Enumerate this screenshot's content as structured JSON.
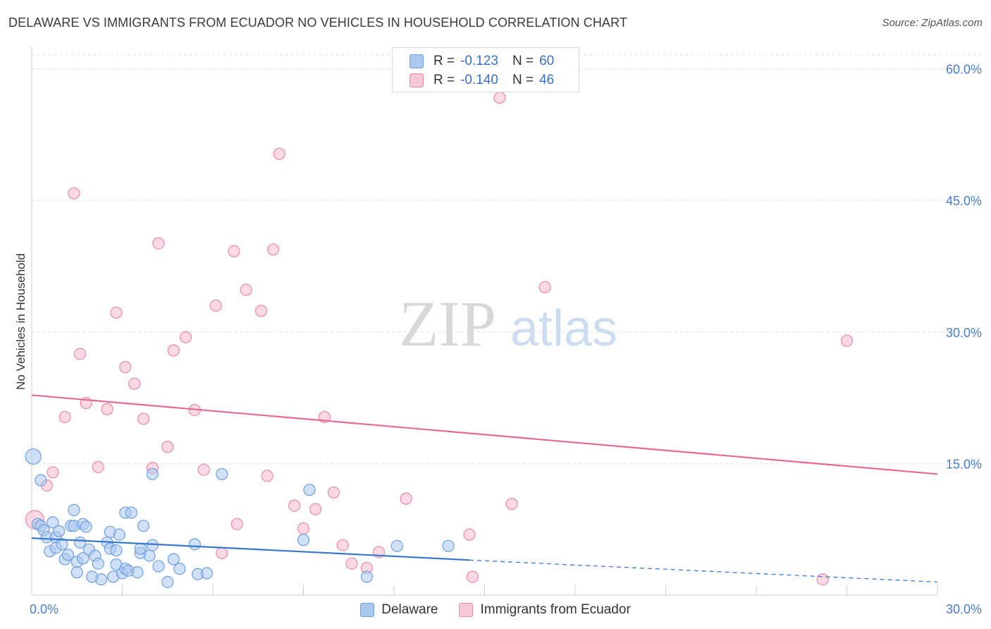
{
  "title": "DELAWARE VS IMMIGRANTS FROM ECUADOR NO VEHICLES IN HOUSEHOLD CORRELATION CHART",
  "source": "Source: ZipAtlas.com",
  "watermark": {
    "zip": "ZIP",
    "atlas": "atlas"
  },
  "colors": {
    "blue_fill": "#a9c8f0",
    "blue_stroke": "#6f9fdc",
    "blue_line": "#3a78d0",
    "pink_fill": "#f6b9cc",
    "pink_stroke": "#e98aa8",
    "pink_line": "#e46a94",
    "grid": "#dedede",
    "tick": "#4a7ec7"
  },
  "legend": {
    "rows": [
      {
        "r_label": "R =",
        "r_value": "-0.123",
        "n_label": "N =",
        "n_value": "60"
      },
      {
        "r_label": "R =",
        "r_value": "-0.140",
        "n_label": "N =",
        "n_value": "46"
      }
    ]
  },
  "chart_data": {
    "type": "scatter",
    "title": "DELAWARE VS IMMIGRANTS FROM ECUADOR NO VEHICLES IN HOUSEHOLD CORRELATION CHART",
    "xlabel": "",
    "ylabel": "No Vehicles in Household",
    "xlim": [
      0,
      30
    ],
    "ylim": [
      0,
      60
    ],
    "x_ticks": [
      {
        "value": 0,
        "label": "0.0%"
      },
      {
        "value": 30,
        "label": "30.0%"
      }
    ],
    "y_ticks": [
      {
        "value": 15,
        "label": "15.0%"
      },
      {
        "value": 30,
        "label": "30.0%"
      },
      {
        "value": 45,
        "label": "45.0%"
      },
      {
        "value": 60,
        "label": "60.0%"
      }
    ],
    "grid": true,
    "legend_position": "top-center",
    "series": [
      {
        "name": "Delaware",
        "color": "blue",
        "trend": {
          "x": [
            0,
            14.5
          ],
          "y": [
            6.5,
            4.0
          ],
          "dashed_to": [
            30,
            1.5
          ]
        },
        "points": [
          [
            0.05,
            15.8,
            11
          ],
          [
            0.3,
            13.1,
            8
          ],
          [
            0.2,
            8.1,
            8
          ],
          [
            0.3,
            7.9,
            8
          ],
          [
            0.4,
            7.4,
            8
          ],
          [
            0.5,
            6.6,
            8
          ],
          [
            0.6,
            5.0,
            8
          ],
          [
            0.8,
            6.6,
            8
          ],
          [
            0.8,
            5.4,
            8
          ],
          [
            0.7,
            8.3,
            8
          ],
          [
            0.9,
            7.3,
            8
          ],
          [
            1.0,
            5.8,
            8
          ],
          [
            1.1,
            4.1,
            8
          ],
          [
            1.2,
            4.6,
            8
          ],
          [
            1.3,
            7.9,
            8
          ],
          [
            1.4,
            9.7,
            8
          ],
          [
            1.4,
            7.9,
            8
          ],
          [
            1.5,
            3.8,
            8
          ],
          [
            1.5,
            2.6,
            8
          ],
          [
            1.7,
            8.1,
            8
          ],
          [
            1.6,
            6.0,
            8
          ],
          [
            1.7,
            4.2,
            8
          ],
          [
            1.8,
            7.8,
            8
          ],
          [
            1.9,
            5.2,
            8
          ],
          [
            2.1,
            4.5,
            8
          ],
          [
            2.2,
            3.6,
            8
          ],
          [
            2.3,
            1.8,
            8
          ],
          [
            2.5,
            6.0,
            8
          ],
          [
            2.6,
            7.2,
            8
          ],
          [
            2.7,
            2.1,
            8
          ],
          [
            2.6,
            5.3,
            8
          ],
          [
            2.8,
            5.1,
            8
          ],
          [
            2.9,
            6.9,
            8
          ],
          [
            2.8,
            3.5,
            8
          ],
          [
            3.0,
            2.5,
            8
          ],
          [
            3.1,
            3.0,
            8
          ],
          [
            3.2,
            2.8,
            8
          ],
          [
            3.1,
            9.4,
            8
          ],
          [
            3.3,
            9.4,
            8
          ],
          [
            3.6,
            4.8,
            8
          ],
          [
            3.6,
            5.3,
            8
          ],
          [
            3.5,
            2.6,
            8
          ],
          [
            3.7,
            7.9,
            8
          ],
          [
            3.9,
            4.5,
            8
          ],
          [
            4.0,
            5.7,
            8
          ],
          [
            4.0,
            13.8,
            8
          ],
          [
            4.2,
            3.3,
            8
          ],
          [
            4.5,
            1.5,
            8
          ],
          [
            4.7,
            4.1,
            8
          ],
          [
            4.9,
            3.0,
            8
          ],
          [
            5.4,
            5.8,
            8
          ],
          [
            5.5,
            2.4,
            8
          ],
          [
            5.8,
            2.5,
            8
          ],
          [
            6.3,
            13.8,
            8
          ],
          [
            9.0,
            6.3,
            8
          ],
          [
            9.2,
            12.0,
            8
          ],
          [
            11.1,
            2.1,
            8
          ],
          [
            12.1,
            5.6,
            8
          ],
          [
            13.8,
            5.6,
            8
          ],
          [
            2.0,
            2.1,
            8
          ]
        ]
      },
      {
        "name": "Immigrants from Ecuador",
        "color": "pink",
        "trend": {
          "x": [
            0,
            30
          ],
          "y": [
            22.8,
            13.8
          ]
        },
        "points": [
          [
            0.1,
            8.6,
            13
          ],
          [
            0.5,
            12.5,
            8
          ],
          [
            0.7,
            14.0,
            8
          ],
          [
            1.1,
            20.3,
            8
          ],
          [
            1.4,
            45.8,
            8
          ],
          [
            1.6,
            27.5,
            8
          ],
          [
            1.8,
            21.9,
            8
          ],
          [
            2.2,
            14.6,
            8
          ],
          [
            2.5,
            21.2,
            8
          ],
          [
            2.8,
            32.2,
            8
          ],
          [
            3.1,
            26.0,
            8
          ],
          [
            3.4,
            24.1,
            8
          ],
          [
            3.7,
            20.1,
            8
          ],
          [
            4.0,
            14.5,
            8
          ],
          [
            4.2,
            40.1,
            8
          ],
          [
            4.5,
            16.9,
            8
          ],
          [
            4.7,
            27.9,
            8
          ],
          [
            5.1,
            29.4,
            8
          ],
          [
            5.4,
            21.1,
            8
          ],
          [
            5.7,
            14.3,
            8
          ],
          [
            6.1,
            33.0,
            8
          ],
          [
            6.3,
            4.8,
            8
          ],
          [
            6.7,
            39.2,
            8
          ],
          [
            6.8,
            8.1,
            8
          ],
          [
            7.1,
            34.8,
            8
          ],
          [
            7.6,
            32.4,
            8
          ],
          [
            7.8,
            13.6,
            8
          ],
          [
            8.0,
            39.4,
            8
          ],
          [
            8.2,
            50.3,
            8
          ],
          [
            8.7,
            10.2,
            8
          ],
          [
            9.0,
            7.6,
            8
          ],
          [
            9.4,
            9.8,
            8
          ],
          [
            9.7,
            20.3,
            8
          ],
          [
            10.0,
            11.7,
            8
          ],
          [
            10.3,
            5.7,
            8
          ],
          [
            10.6,
            3.6,
            8
          ],
          [
            11.1,
            3.1,
            8
          ],
          [
            11.5,
            4.9,
            8
          ],
          [
            12.4,
            11.0,
            8
          ],
          [
            14.5,
            6.9,
            8
          ],
          [
            14.6,
            2.1,
            8
          ],
          [
            15.5,
            56.7,
            8
          ],
          [
            15.9,
            10.4,
            8
          ],
          [
            17.0,
            35.1,
            8
          ],
          [
            26.2,
            1.8,
            8
          ],
          [
            27.0,
            29.0,
            8
          ]
        ]
      }
    ]
  }
}
